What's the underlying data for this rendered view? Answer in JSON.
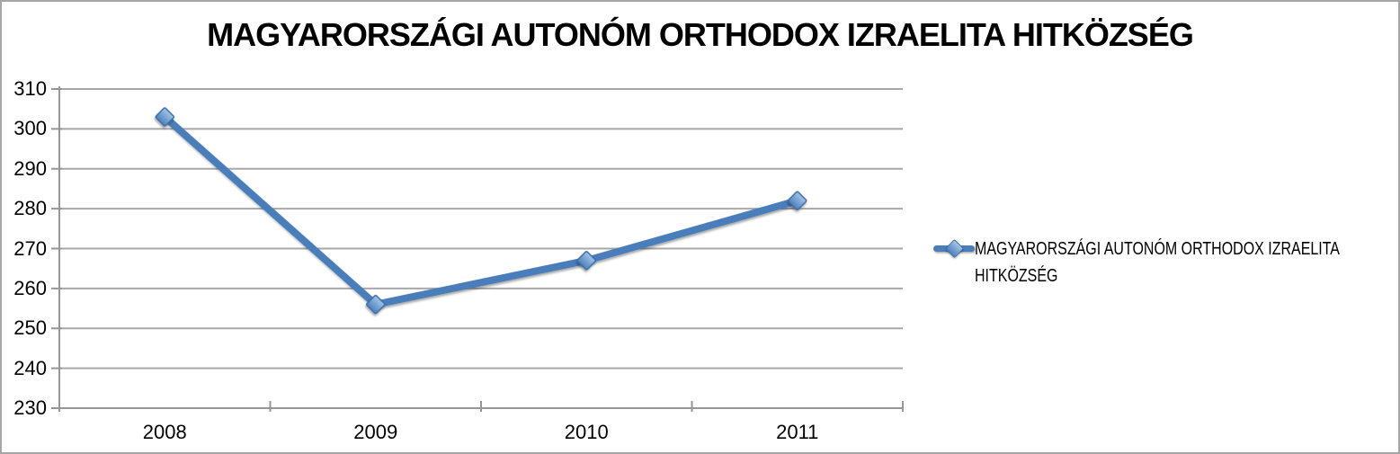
{
  "chart_data": {
    "type": "line",
    "title": "MAGYARORSZÁGI AUTONÓM ORTHODOX IZRAELITA HITKÖZSÉG",
    "categories": [
      "2008",
      "2009",
      "2010",
      "2011"
    ],
    "series": [
      {
        "name": "MAGYARORSZÁGI AUTONÓM ORTHODOX IZRAELITA HITKÖZSÉG",
        "values": [
          303,
          256,
          267,
          282
        ]
      }
    ],
    "xlabel": "",
    "ylabel": "",
    "ylim": [
      230,
      310
    ],
    "yticks": [
      230,
      240,
      250,
      260,
      270,
      280,
      290,
      300,
      310
    ],
    "grid": "horizontal",
    "legend_position": "right",
    "marker_shape": "diamond",
    "colors": {
      "series_line": "#4a7ebb",
      "marker_fill_top": "#a3c4e8",
      "marker_fill_bottom": "#4f81bd",
      "marker_stroke": "#3e6da8",
      "gridline": "#a8a8a8",
      "axis": "#969696",
      "text": "#000000",
      "frame_border": "#a6a6a6",
      "background": "#ffffff"
    }
  }
}
